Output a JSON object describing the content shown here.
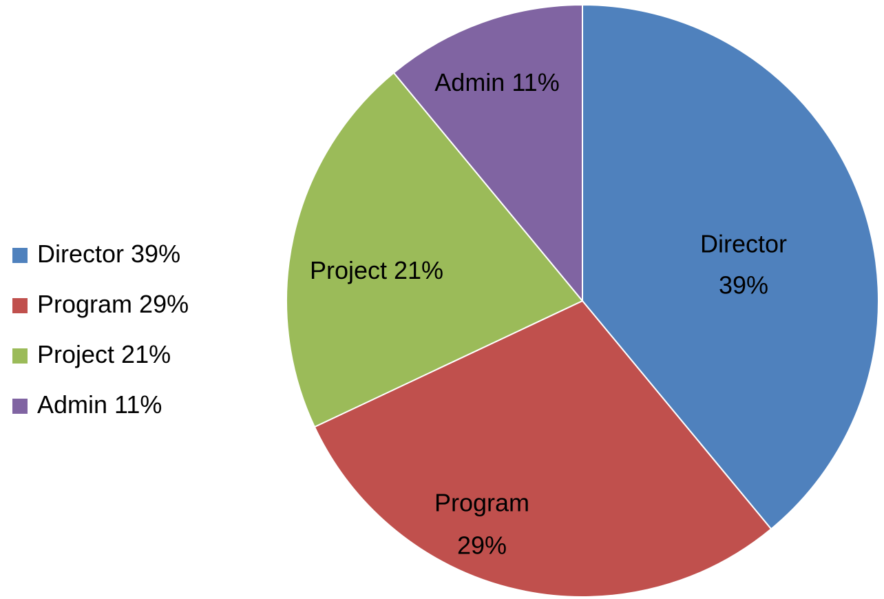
{
  "chart_data": {
    "type": "pie",
    "categories": [
      "Director",
      "Program",
      "Project",
      "Admin"
    ],
    "values": [
      39,
      29,
      21,
      11
    ],
    "value_labels": [
      "39%",
      "29%",
      "21%",
      "11%"
    ],
    "colors": [
      "#4f81bd",
      "#c0504d",
      "#9bbb59",
      "#8064a2"
    ],
    "legend": "left"
  }
}
